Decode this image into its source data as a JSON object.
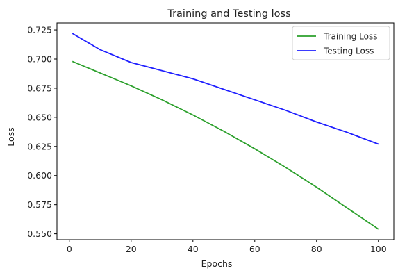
{
  "chart_data": {
    "type": "line",
    "title": "Training and Testing loss",
    "xlabel": "Epochs",
    "ylabel": "Loss",
    "xlim": [
      -4,
      105
    ],
    "ylim": [
      0.545,
      0.731
    ],
    "xticks": [
      0,
      20,
      40,
      60,
      80,
      100
    ],
    "yticks": [
      0.55,
      0.575,
      0.6,
      0.625,
      0.65,
      0.675,
      0.7,
      0.725
    ],
    "ytick_labels": [
      "0.550",
      "0.575",
      "0.600",
      "0.625",
      "0.650",
      "0.675",
      "0.700",
      "0.725"
    ],
    "grid": false,
    "legend_position": "top-right",
    "x": [
      1,
      10,
      20,
      30,
      40,
      50,
      60,
      70,
      80,
      90,
      100
    ],
    "series": [
      {
        "name": "Training Loss",
        "color": "#2ca02c",
        "values": [
          0.698,
          0.688,
          0.677,
          0.665,
          0.652,
          0.638,
          0.623,
          0.607,
          0.59,
          0.572,
          0.554
        ]
      },
      {
        "name": "Testing Loss",
        "color": "#1f1fff",
        "values": [
          0.722,
          0.708,
          0.697,
          0.69,
          0.683,
          0.674,
          0.665,
          0.656,
          0.646,
          0.637,
          0.627
        ]
      }
    ]
  }
}
